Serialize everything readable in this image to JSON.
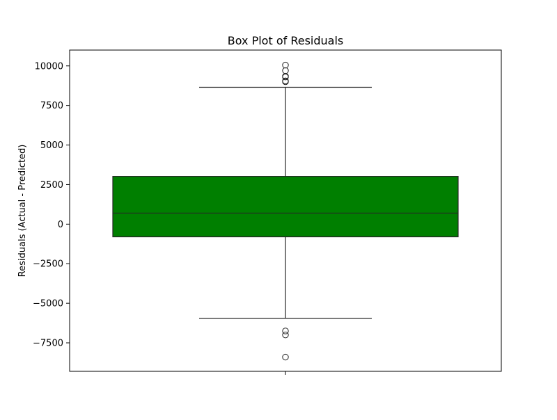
{
  "chart_data": {
    "type": "box",
    "title": "Box Plot of Residuals",
    "xlabel": "",
    "ylabel": "Residuals (Actual - Predicted)",
    "ylim": [
      -9300,
      11000
    ],
    "yticks": [
      10000,
      7500,
      5000,
      2500,
      0,
      -2500,
      -5000,
      -7500
    ],
    "ytick_labels": [
      "10000",
      "7500",
      "5000",
      "2500",
      "0",
      "−2500",
      "−5000",
      "−7500"
    ],
    "xticks": [
      ""
    ],
    "grid": false,
    "legend": "none",
    "box_color": "#007f00",
    "series": [
      {
        "q1": -800,
        "median": 700,
        "q3": 3020,
        "whisker_low": -5950,
        "whisker_high": 8650,
        "outliers": [
          10050,
          9700,
          9350,
          9300,
          9050,
          9000,
          -6750,
          -7000,
          -8400
        ]
      }
    ]
  }
}
